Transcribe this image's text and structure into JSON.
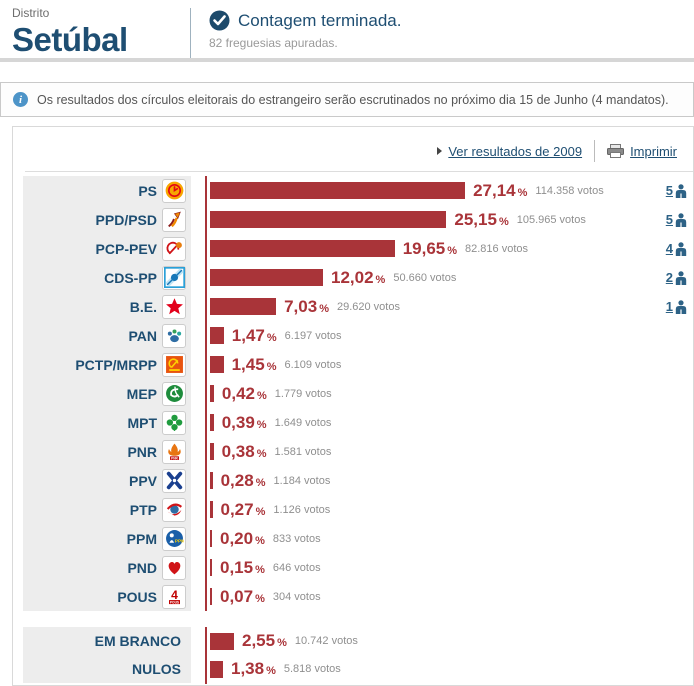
{
  "header": {
    "district_label": "Distrito",
    "district_name": "Setúbal",
    "status_title": "Contagem terminada.",
    "status_subtitle": "82 freguesias apuradas."
  },
  "notice": {
    "text": "Os resultados dos círculos eleitorais do estrangeiro serão escrutinados no próximo dia 15 de Junho (4 mandatos)."
  },
  "toolbar": {
    "results_2009_label": "Ver resultados de 2009",
    "print_label": "Imprimir"
  },
  "labels": {
    "percent_suffix": "%"
  },
  "colors": {
    "bar": "#a93439",
    "navy": "#1e4e72",
    "mandate_blue": "#2d6286",
    "label_bg": "#ededed"
  },
  "chart_data": {
    "type": "bar",
    "orientation": "horizontal",
    "value_unit": "percent",
    "xlim": [
      0,
      30
    ],
    "bar_color": "#a93439",
    "rows": [
      {
        "party": "PS",
        "pct_label": "27,14",
        "pct": 27.14,
        "votes_label": "114.358 votos",
        "votes": 114358,
        "mandates": "5",
        "icon": "ps-party-logo-icon"
      },
      {
        "party": "PPD/PSD",
        "pct_label": "25,15",
        "pct": 25.15,
        "votes_label": "105.965 votos",
        "votes": 105965,
        "mandates": "5",
        "icon": "psd-party-logo-icon"
      },
      {
        "party": "PCP-PEV",
        "pct_label": "19,65",
        "pct": 19.65,
        "votes_label": "82.816 votos",
        "votes": 82816,
        "mandates": "4",
        "icon": "pcp-pev-party-logo-icon"
      },
      {
        "party": "CDS-PP",
        "pct_label": "12,02",
        "pct": 12.02,
        "votes_label": "50.660 votos",
        "votes": 50660,
        "mandates": "2",
        "icon": "cds-pp-party-logo-icon"
      },
      {
        "party": "B.E.",
        "pct_label": "7,03",
        "pct": 7.03,
        "votes_label": "29.620 votos",
        "votes": 29620,
        "mandates": "1",
        "icon": "be-party-logo-icon"
      },
      {
        "party": "PAN",
        "pct_label": "1,47",
        "pct": 1.47,
        "votes_label": "6.197 votos",
        "votes": 6197,
        "mandates": null,
        "icon": "pan-party-logo-icon"
      },
      {
        "party": "PCTP/MRPP",
        "pct_label": "1,45",
        "pct": 1.45,
        "votes_label": "6.109 votos",
        "votes": 6109,
        "mandates": null,
        "icon": "pctp-mrpp-party-logo-icon"
      },
      {
        "party": "MEP",
        "pct_label": "0,42",
        "pct": 0.42,
        "votes_label": "1.779 votos",
        "votes": 1779,
        "mandates": null,
        "icon": "mep-party-logo-icon"
      },
      {
        "party": "MPT",
        "pct_label": "0,39",
        "pct": 0.39,
        "votes_label": "1.649 votos",
        "votes": 1649,
        "mandates": null,
        "icon": "mpt-party-logo-icon"
      },
      {
        "party": "PNR",
        "pct_label": "0,38",
        "pct": 0.38,
        "votes_label": "1.581 votos",
        "votes": 1581,
        "mandates": null,
        "icon": "pnr-party-logo-icon"
      },
      {
        "party": "PPV",
        "pct_label": "0,28",
        "pct": 0.28,
        "votes_label": "1.184 votos",
        "votes": 1184,
        "mandates": null,
        "icon": "ppv-party-logo-icon"
      },
      {
        "party": "PTP",
        "pct_label": "0,27",
        "pct": 0.27,
        "votes_label": "1.126 votos",
        "votes": 1126,
        "mandates": null,
        "icon": "ptp-party-logo-icon"
      },
      {
        "party": "PPM",
        "pct_label": "0,20",
        "pct": 0.2,
        "votes_label": "833 votos",
        "votes": 833,
        "mandates": null,
        "icon": "ppm-party-logo-icon"
      },
      {
        "party": "PND",
        "pct_label": "0,15",
        "pct": 0.15,
        "votes_label": "646 votos",
        "votes": 646,
        "mandates": null,
        "icon": "pnd-party-logo-icon"
      },
      {
        "party": "POUS",
        "pct_label": "0,07",
        "pct": 0.07,
        "votes_label": "304 votos",
        "votes": 304,
        "mandates": null,
        "icon": "pous-party-logo-icon"
      }
    ],
    "other_rows": [
      {
        "party": "EM BRANCO",
        "pct_label": "2,55",
        "pct": 2.55,
        "votes_label": "10.742 votos",
        "votes": 10742
      },
      {
        "party": "NULOS",
        "pct_label": "1,38",
        "pct": 1.38,
        "votes_label": "5.818 votos",
        "votes": 5818
      }
    ]
  }
}
